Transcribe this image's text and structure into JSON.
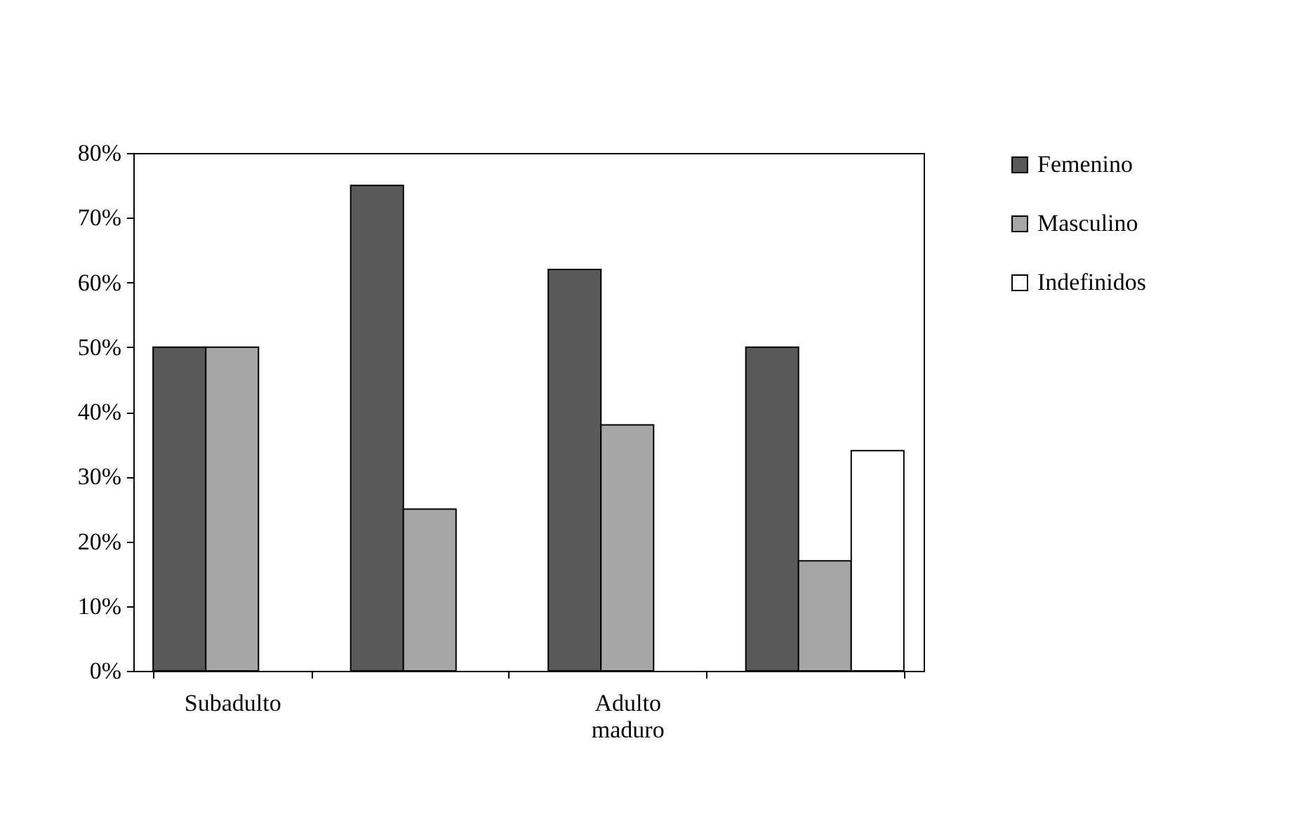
{
  "chart_data": {
    "type": "bar",
    "categories": [
      "Subadulto",
      null,
      "Adulto maduro",
      null
    ],
    "series": [
      {
        "name": "Femenino",
        "color": "#595959",
        "values": [
          50,
          75,
          62,
          50
        ]
      },
      {
        "name": "Masculino",
        "color": "#a6a6a6",
        "values": [
          50,
          25,
          38,
          17
        ]
      },
      {
        "name": "Indefinidos",
        "color": "#ffffff",
        "values": [
          0,
          0,
          0,
          34
        ]
      }
    ],
    "ylim": [
      0,
      80
    ],
    "yticks": [
      {
        "value": 0,
        "label": "0%"
      },
      {
        "value": 10,
        "label": "10%"
      },
      {
        "value": 20,
        "label": "20%"
      },
      {
        "value": 30,
        "label": "30%"
      },
      {
        "value": 40,
        "label": "40%"
      },
      {
        "value": 50,
        "label": "50%"
      },
      {
        "value": 60,
        "label": "60%"
      },
      {
        "value": 70,
        "label": "70%"
      },
      {
        "value": 80,
        "label": "80%"
      }
    ],
    "grid": false,
    "legend": "right"
  }
}
